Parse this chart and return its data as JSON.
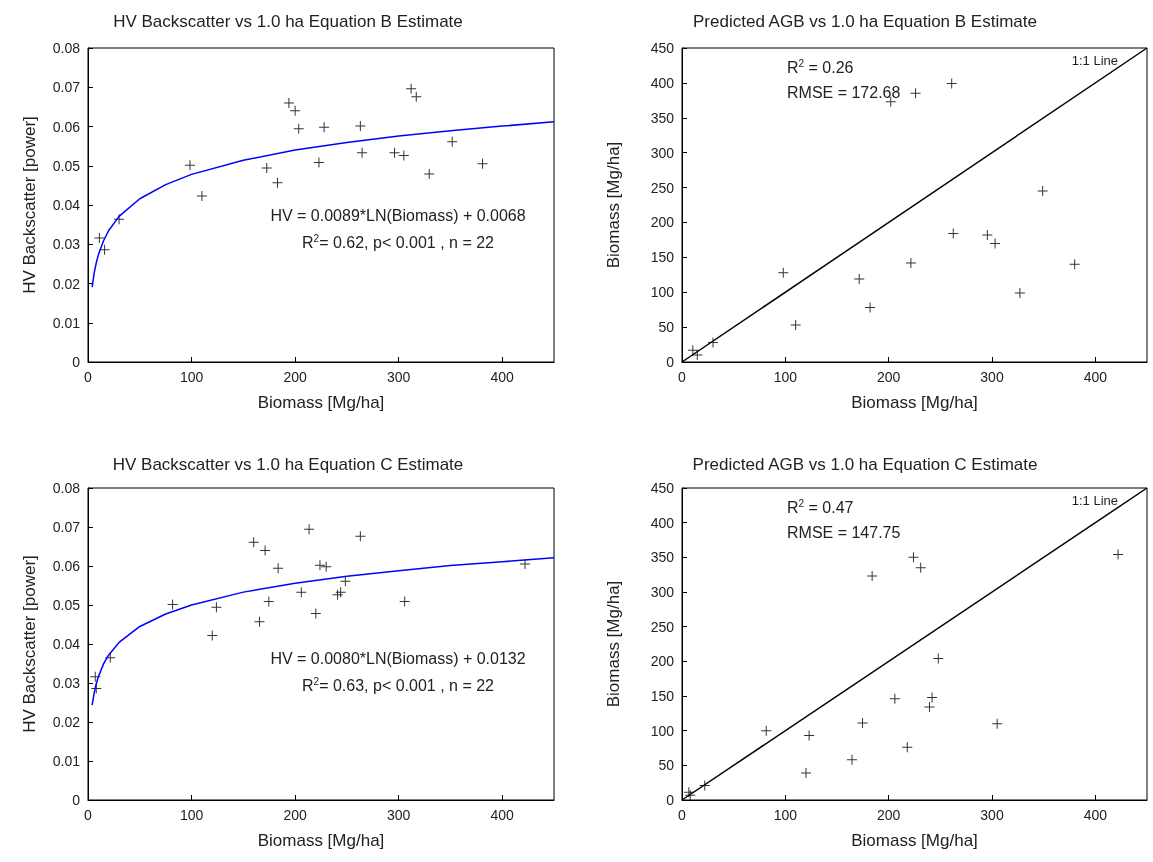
{
  "chart_data": [
    {
      "type": "scatter",
      "title": "HV Backscatter vs 1.0 ha Equation B Estimate",
      "xlabel": "Biomass [Mg/ha]",
      "ylabel": "HV Backscatter [power]",
      "xlim": [
        0,
        450
      ],
      "xticks": [
        0,
        100,
        200,
        300,
        400
      ],
      "ylim": [
        0,
        0.08
      ],
      "yticks": [
        0,
        0.01,
        0.02,
        0.03,
        0.04,
        0.05,
        0.06,
        0.07,
        0.08
      ],
      "grid": false,
      "annotations": [
        "HV = 0.0089*LN(Biomass) + 0.0068",
        "R$^{2}$= 0.62, p< 0.001 , n = 22"
      ],
      "series": [
        {
          "color": "#000000",
          "marker": "cross",
          "x": [
            11,
            16,
            30,
            98.5,
            110,
            172.6,
            183,
            194,
            200,
            203.5,
            223,
            228,
            263,
            264.7,
            296,
            305,
            312,
            317,
            329.5,
            351.7,
            381
          ],
          "values": [
            0.0316,
            0.0286,
            0.0364,
            0.0501,
            0.0423,
            0.0494,
            0.0457,
            0.066,
            0.064,
            0.0594,
            0.0508,
            0.0598,
            0.0601,
            0.0533,
            0.0533,
            0.0526,
            0.0696,
            0.0676,
            0.0479,
            0.0561,
            0.0505
          ]
        },
        {
          "type": "line",
          "color": "#0000ff",
          "marker": "none",
          "x": [
            4,
            6,
            8,
            10,
            15,
            20,
            30,
            50,
            75,
            100,
            150,
            200,
            250,
            300,
            350,
            400,
            450
          ],
          "values": [
            0.0191,
            0.0227,
            0.0253,
            0.0273,
            0.0309,
            0.0335,
            0.0371,
            0.0416,
            0.0452,
            0.0478,
            0.0514,
            0.054,
            0.0559,
            0.0576,
            0.0589,
            0.0601,
            0.0612
          ]
        }
      ]
    },
    {
      "type": "scatter",
      "title": "Predicted AGB vs 1.0 ha Equation B Estimate",
      "xlabel": "Biomass [Mg/ha]",
      "ylabel": "Biomass [Mg/ha]",
      "xlim": [
        0,
        450
      ],
      "xticks": [
        0,
        100,
        200,
        300,
        400
      ],
      "ylim": [
        0,
        450
      ],
      "yticks": [
        0,
        50,
        100,
        150,
        200,
        250,
        300,
        350,
        400,
        450
      ],
      "grid": false,
      "annotations": [
        "R$^{2}$ = 0.26",
        "RMSE = 172.68",
        "1:1 Line"
      ],
      "series": [
        {
          "color": "#000000",
          "marker": "cross",
          "x": [
            10.5,
            14.8,
            30,
            98,
            110,
            171.5,
            182,
            202,
            226,
            261,
            262.5,
            221.5,
            295.5,
            303,
            327,
            349,
            380
          ],
          "values": [
            17,
            10,
            28,
            128,
            53,
            119,
            78,
            373,
            385,
            399,
            184,
            142,
            182,
            170,
            99,
            245,
            140
          ]
        },
        {
          "type": "line",
          "color": "#000000",
          "marker": "none",
          "x": [
            0,
            450
          ],
          "values": [
            0,
            450
          ]
        }
      ]
    },
    {
      "type": "scatter",
      "title": "HV Backscatter vs 1.0 ha Equation C Estimate",
      "xlabel": "Biomass [Mg/ha]",
      "ylabel": "HV Backscatter [power]",
      "xlim": [
        0,
        450
      ],
      "xticks": [
        0,
        100,
        200,
        300,
        400
      ],
      "ylim": [
        0,
        0.08
      ],
      "yticks": [
        0,
        0.01,
        0.02,
        0.03,
        0.04,
        0.05,
        0.06,
        0.07,
        0.08
      ],
      "grid": false,
      "annotations": [
        "HV = 0.0080*LN(Biomass) + 0.0132",
        "R$^{2}$= 0.63, p< 0.001 , n = 22"
      ],
      "series": [
        {
          "color": "#000000",
          "marker": "cross",
          "x": [
            7,
            8,
            21.5,
            81.7,
            120,
            124,
            160,
            171,
            183.6,
            165.6,
            174.6,
            206,
            213.5,
            220,
            224,
            230,
            241,
            244,
            248.5,
            263,
            305.8,
            422
          ],
          "values": [
            0.0316,
            0.0286,
            0.0365,
            0.0501,
            0.0422,
            0.0494,
            0.0661,
            0.064,
            0.0594,
            0.0457,
            0.0509,
            0.0533,
            0.0694,
            0.0478,
            0.0602,
            0.0598,
            0.0526,
            0.0533,
            0.0561,
            0.0676,
            0.0509,
            0.0605
          ]
        },
        {
          "type": "line",
          "color": "#0000ff",
          "marker": "none",
          "x": [
            4,
            6,
            8,
            10,
            15,
            20,
            30,
            50,
            75,
            100,
            150,
            200,
            250,
            300,
            350,
            400,
            450
          ],
          "values": [
            0.0243,
            0.0275,
            0.0298,
            0.0316,
            0.0349,
            0.0372,
            0.0404,
            0.0445,
            0.0477,
            0.05,
            0.0533,
            0.0556,
            0.0574,
            0.0588,
            0.0601,
            0.0611,
            0.0621
          ]
        }
      ]
    },
    {
      "type": "scatter",
      "title": "Predicted AGB vs 1.0 ha Equation C Estimate",
      "xlabel": "Biomass [Mg/ha]",
      "ylabel": "Biomass [Mg/ha]",
      "xlim": [
        0,
        450
      ],
      "xticks": [
        0,
        100,
        200,
        300,
        400
      ],
      "ylim": [
        0,
        450
      ],
      "yticks": [
        0,
        50,
        100,
        150,
        200,
        250,
        300,
        350,
        400,
        450
      ],
      "grid": false,
      "annotations": [
        "R$^{2}$ = 0.47",
        "RMSE = 147.75",
        "1:1 Line"
      ],
      "series": [
        {
          "color": "#000000",
          "marker": "cross",
          "x": [
            6.6,
            8,
            22,
            81.5,
            120,
            123,
            164.5,
            174.7,
            184,
            206,
            218,
            224,
            231,
            239.5,
            242,
            248,
            305,
            422
          ],
          "values": [
            11,
            7,
            21,
            100,
            39,
            93,
            58,
            111,
            323,
            146,
            76,
            350,
            335,
            134,
            148,
            204,
            110,
            354
          ]
        },
        {
          "type": "line",
          "color": "#000000",
          "marker": "none",
          "x": [
            0,
            450
          ],
          "values": [
            0,
            450
          ]
        }
      ]
    }
  ]
}
